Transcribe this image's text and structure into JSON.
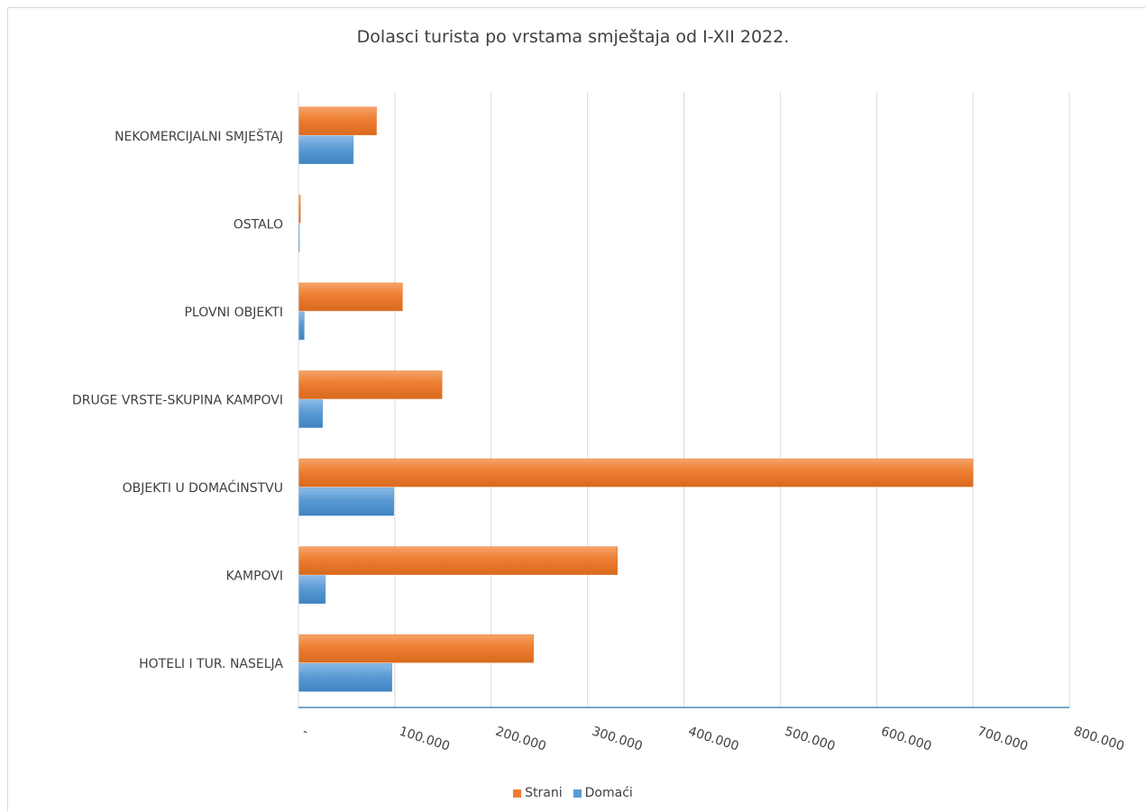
{
  "chart_data": {
    "type": "bar",
    "orientation": "horizontal",
    "title": "Dolasci turista po vrstama smještaja od I-XII 2022.",
    "categories": [
      "NEKOMERCIJALNI SMJEŠTAJ",
      "OSTALO",
      "PLOVNI OBJEKTI",
      "DRUGE VRSTE-SKUPINA KAMPOVI",
      "OBJEKTI U DOMAĆINSTVU",
      "KAMPOVI",
      "HOTELI I TUR. NASELJA"
    ],
    "series": [
      {
        "name": "Strani",
        "color": "#ED7D31",
        "values": [
          81000,
          2000,
          108000,
          149000,
          700000,
          331000,
          244000
        ]
      },
      {
        "name": "Domaći",
        "color": "#5B9BD5",
        "values": [
          57000,
          1000,
          6000,
          25000,
          99000,
          28000,
          97000
        ]
      }
    ],
    "xlim": [
      0,
      800000
    ],
    "x_ticks": [
      "-",
      "100.000",
      "200.000",
      "300.000",
      "400.000",
      "500.000",
      "600.000",
      "700.000",
      "800.000"
    ],
    "grid": true,
    "legend_position": "bottom"
  }
}
